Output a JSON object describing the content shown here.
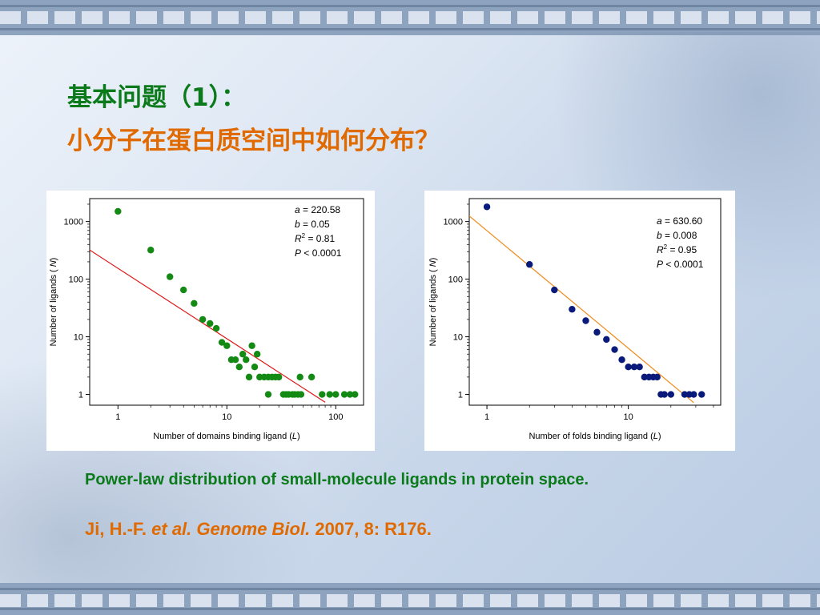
{
  "heading": {
    "line1": "基本问题（1）：",
    "line2": "小分子在蛋白质空间中如何分布？"
  },
  "caption": "Power-law distribution of small-molecule ligands in protein space.",
  "citation": {
    "authors": "Ji, H.-F.",
    "etal": "et al.",
    "journal": "Genome Biol.",
    "ref": "2007, 8: R176."
  },
  "colors": {
    "heading1": "#0b7a1a",
    "heading2": "#e06a00",
    "chart1_points": "#138a13",
    "chart1_fit": "#e01818",
    "chart2_points": "#0a1a7a",
    "chart2_fit": "#f08a1a"
  },
  "chart_data": [
    {
      "type": "scatter",
      "xscale": "log",
      "yscale": "log",
      "xlim": [
        0.55,
        180
      ],
      "ylim": [
        0.65,
        2500
      ],
      "xticks": [
        1,
        10,
        100
      ],
      "yticks": [
        1,
        10,
        100,
        1000
      ],
      "xticklabels": [
        "1",
        "10",
        "100"
      ],
      "yticklabels": [
        "1",
        "10",
        "100",
        "1000"
      ],
      "xlabel": "Number of domains binding ligand (L)",
      "xlabel_text": "Number of domains binding ligand (",
      "xlabel_var": "L",
      "xlabel_close": ")",
      "ylabel_text": "Number of ligands (",
      "ylabel_var": "N",
      "ylabel_close": ")",
      "stats": [
        {
          "var": "a",
          "text": " = 220.58"
        },
        {
          "var": "b",
          "text": " = 0.05"
        },
        {
          "var": "R",
          "sup": "2",
          "text": " = 0.81"
        },
        {
          "var": "P",
          "text": " < 0.0001"
        }
      ],
      "fit": {
        "x": [
          0.5,
          80
        ],
        "y": [
          360,
          0.73
        ]
      },
      "points": [
        [
          1,
          1500
        ],
        [
          2,
          320
        ],
        [
          3,
          110
        ],
        [
          4,
          65
        ],
        [
          5,
          38
        ],
        [
          6,
          20
        ],
        [
          7,
          17
        ],
        [
          8,
          14
        ],
        [
          9,
          8
        ],
        [
          10,
          7
        ],
        [
          11,
          4
        ],
        [
          12,
          4
        ],
        [
          13,
          3
        ],
        [
          14,
          5
        ],
        [
          15,
          4
        ],
        [
          16,
          2
        ],
        [
          17,
          7
        ],
        [
          18,
          3
        ],
        [
          19,
          5
        ],
        [
          20,
          2
        ],
        [
          22,
          2
        ],
        [
          24,
          2
        ],
        [
          26,
          2
        ],
        [
          28,
          2
        ],
        [
          30,
          2
        ],
        [
          24,
          1
        ],
        [
          33,
          1
        ],
        [
          35,
          1
        ],
        [
          37,
          1
        ],
        [
          40,
          1
        ],
        [
          42,
          1
        ],
        [
          45,
          1
        ],
        [
          48,
          1
        ],
        [
          47,
          2
        ],
        [
          60,
          2
        ],
        [
          75,
          1
        ],
        [
          88,
          1
        ],
        [
          100,
          1
        ],
        [
          120,
          1
        ],
        [
          135,
          1
        ],
        [
          150,
          1
        ]
      ]
    },
    {
      "type": "scatter",
      "xscale": "log",
      "yscale": "log",
      "xlim": [
        0.75,
        45
      ],
      "ylim": [
        0.65,
        2500
      ],
      "xticks": [
        1,
        10
      ],
      "yticks": [
        1,
        10,
        100,
        1000
      ],
      "xticklabels": [
        "1",
        "10"
      ],
      "yticklabels": [
        "1",
        "10",
        "100",
        "1000"
      ],
      "xlabel": "Number of folds binding ligand (L)",
      "xlabel_text": "Number of folds binding ligand (",
      "xlabel_var": "L",
      "xlabel_close": ")",
      "ylabel_text": "Number of ligands (",
      "ylabel_var": "N",
      "ylabel_close": ")",
      "stats": [
        {
          "var": "a",
          "text": " = 630.60"
        },
        {
          "var": "b",
          "text": " = 0.008"
        },
        {
          "var": "R",
          "sup": "2",
          "text": " = 0.95"
        },
        {
          "var": "P",
          "text": " < 0.0001"
        }
      ],
      "fit": {
        "x": [
          0.75,
          29
        ],
        "y": [
          1250,
          0.72
        ]
      },
      "points": [
        [
          1,
          1800
        ],
        [
          2,
          180
        ],
        [
          3,
          65
        ],
        [
          4,
          30
        ],
        [
          5,
          19
        ],
        [
          6,
          12
        ],
        [
          7,
          9
        ],
        [
          8,
          6
        ],
        [
          9,
          4
        ],
        [
          10,
          3
        ],
        [
          11,
          3
        ],
        [
          12,
          3
        ],
        [
          13,
          2
        ],
        [
          14,
          2
        ],
        [
          15,
          2
        ],
        [
          16,
          2
        ],
        [
          17,
          1
        ],
        [
          18,
          1
        ],
        [
          20,
          1
        ],
        [
          25,
          1
        ],
        [
          27,
          1
        ],
        [
          29,
          1
        ],
        [
          33,
          1
        ]
      ]
    }
  ]
}
